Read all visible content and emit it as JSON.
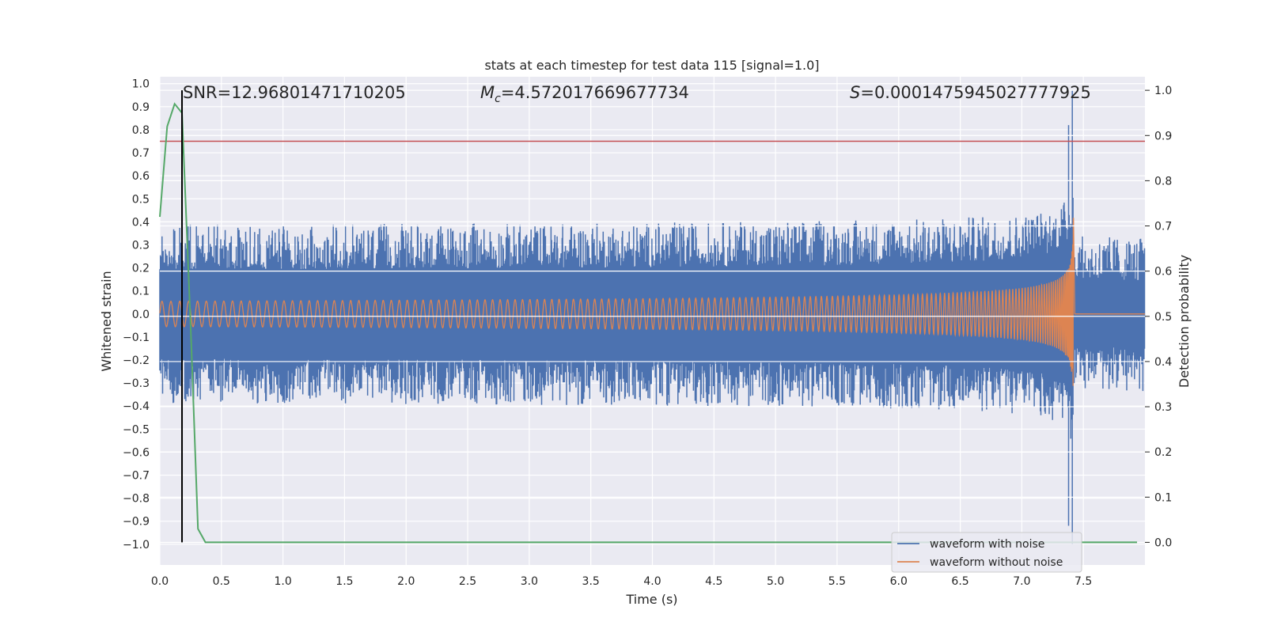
{
  "chart_data": {
    "type": "line",
    "title": "stats at each timestep for test data 115 [signal=1.0]",
    "xlabel": "Time (s)",
    "ylabel_left": "Whitened strain",
    "ylabel_right": "Detection probability",
    "xlim": [
      0.0,
      8.0
    ],
    "ylim_left": [
      -1.09,
      1.03
    ],
    "ylim_right": [
      -0.05,
      1.03
    ],
    "x_ticks": [
      "0.0",
      "0.5",
      "1.0",
      "1.5",
      "2.0",
      "2.5",
      "3.0",
      "3.5",
      "4.0",
      "4.5",
      "5.0",
      "5.5",
      "6.0",
      "6.5",
      "7.0",
      "7.5"
    ],
    "y_ticks_left": [
      "1.0",
      "0.9",
      "0.8",
      "0.7",
      "0.6",
      "0.5",
      "0.4",
      "0.3",
      "0.2",
      "0.1",
      "0.0",
      "-0.1",
      "-0.2",
      "-0.3",
      "-0.4",
      "-0.5",
      "-0.6",
      "-0.7",
      "-0.8",
      "-0.9",
      "-1.0"
    ],
    "y_ticks_right": [
      "1.0",
      "0.9",
      "0.8",
      "0.7",
      "0.6",
      "0.5",
      "0.4",
      "0.3",
      "0.2",
      "0.1",
      "0.0"
    ],
    "annotations": {
      "snr": "SNR=12.96801471710205",
      "mc_symbol": "M",
      "mc_sub": "c",
      "mc_value": "=4.572017669677734",
      "s_symbol": "S",
      "s_value": "=0.0001475945027777925"
    },
    "threshold_left": 0.75,
    "marker_time": 0.18,
    "merger_time": 7.42,
    "noise_amplitude": 0.26,
    "series": [
      {
        "name": "waveform with noise",
        "color": "#4c72b0"
      },
      {
        "name": "waveform without noise",
        "color": "#dd8452"
      },
      {
        "name": "detection probability",
        "color": "#55a868",
        "x": [
          0.0,
          0.06,
          0.12,
          0.18,
          0.25,
          0.31,
          0.37,
          1.0,
          2.0,
          3.0,
          4.0,
          5.0,
          6.0,
          7.0,
          7.4,
          8.0
        ],
        "values": [
          0.72,
          0.92,
          0.97,
          0.95,
          0.48,
          0.03,
          0.0,
          0.0,
          0.0,
          0.0,
          0.0,
          0.0,
          0.0,
          0.0,
          0.0,
          0.0
        ]
      }
    ],
    "legend": [
      "waveform with noise",
      "waveform without noise"
    ],
    "legend_position": "lower-right"
  }
}
